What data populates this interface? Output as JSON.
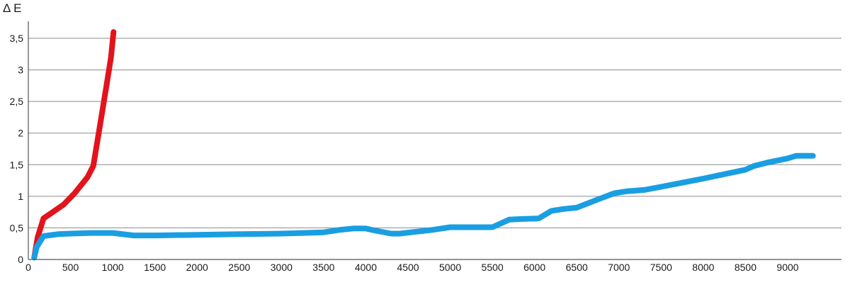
{
  "chart_data": {
    "type": "line",
    "ylabel": "Δ E",
    "xlim": [
      0,
      9400
    ],
    "ylim": [
      0,
      3.5
    ],
    "x_ticks": [
      "0",
      "500",
      "1000",
      "1500",
      "2000",
      "2500",
      "3000",
      "3500",
      "4000",
      "4500",
      "5000",
      "5500",
      "6000",
      "6500",
      "7000",
      "7500",
      "8000",
      "8500",
      "9000"
    ],
    "x_tick_values": [
      0,
      500,
      1000,
      1500,
      2000,
      2500,
      3000,
      3500,
      4000,
      4500,
      5000,
      5500,
      6000,
      6500,
      7000,
      7500,
      8000,
      8500,
      9000
    ],
    "y_ticks": [
      "0",
      "0,5",
      "1",
      "1,5",
      "2",
      "2,5",
      "3",
      "3,5"
    ],
    "y_tick_values": [
      0,
      0.5,
      1,
      1.5,
      2,
      2.5,
      3,
      3.5
    ],
    "grid": "horizontal",
    "legend": "none",
    "series": [
      {
        "color": "#e3131b",
        "x": [
          70,
          110,
          180,
          300,
          420,
          550,
          700,
          770,
          840,
          920,
          980,
          1010
        ],
        "y": [
          0.03,
          0.35,
          0.65,
          0.76,
          0.87,
          1.05,
          1.3,
          1.48,
          2.05,
          2.7,
          3.2,
          3.6
        ]
      },
      {
        "color": "#1a9ee2",
        "x": [
          70,
          100,
          180,
          350,
          500,
          750,
          1000,
          1250,
          1500,
          2000,
          2500,
          3000,
          3500,
          3700,
          3850,
          4000,
          4100,
          4300,
          4400,
          4600,
          4800,
          5000,
          5500,
          5700,
          5850,
          6050,
          6200,
          6350,
          6500,
          6750,
          6950,
          7100,
          7300,
          7500,
          8000,
          8500,
          8600,
          8750,
          9000,
          9100,
          9250,
          9300
        ],
        "y": [
          0.03,
          0.2,
          0.37,
          0.4,
          0.41,
          0.42,
          0.42,
          0.38,
          0.38,
          0.39,
          0.4,
          0.41,
          0.43,
          0.47,
          0.49,
          0.49,
          0.46,
          0.41,
          0.41,
          0.44,
          0.47,
          0.51,
          0.51,
          0.63,
          0.64,
          0.65,
          0.77,
          0.8,
          0.82,
          0.95,
          1.05,
          1.08,
          1.1,
          1.15,
          1.28,
          1.42,
          1.48,
          1.53,
          1.6,
          1.64,
          1.64,
          1.64
        ]
      }
    ]
  }
}
